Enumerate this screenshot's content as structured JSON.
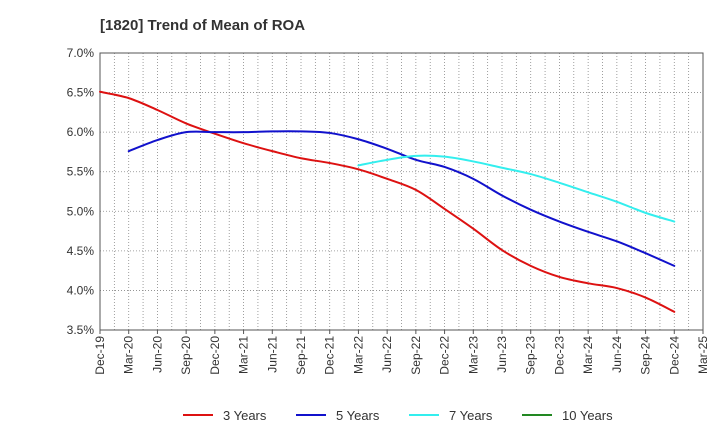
{
  "chart_data": {
    "type": "line",
    "title": "[1820]  Trend of Mean of ROA",
    "xlabel": "",
    "ylabel": "",
    "ylim": [
      3.5,
      7.0
    ],
    "y_ticks": [
      "3.5%",
      "4.0%",
      "4.5%",
      "5.0%",
      "5.5%",
      "6.0%",
      "6.5%",
      "7.0%"
    ],
    "x_ticks": [
      "Dec-19",
      "Mar-20",
      "Jun-20",
      "Sep-20",
      "Dec-20",
      "Mar-21",
      "Jun-21",
      "Sep-21",
      "Dec-21",
      "Mar-22",
      "Jun-22",
      "Sep-22",
      "Dec-22",
      "Mar-23",
      "Jun-23",
      "Sep-23",
      "Dec-23",
      "Mar-24",
      "Jun-24",
      "Sep-24",
      "Dec-24",
      "Mar-25"
    ],
    "grid": true,
    "legend_position": "bottom",
    "series": [
      {
        "name": "3 Years",
        "color": "#dd1111",
        "values": [
          6.51,
          6.43,
          6.28,
          6.11,
          5.98,
          5.86,
          5.76,
          5.67,
          5.61,
          5.53,
          5.41,
          5.27,
          5.03,
          4.78,
          4.51,
          4.31,
          4.17,
          4.09,
          4.03,
          3.91,
          3.73,
          null
        ]
      },
      {
        "name": "5 Years",
        "color": "#1111cc",
        "values": [
          null,
          5.76,
          5.9,
          6.0,
          6.0,
          6.0,
          6.01,
          6.01,
          5.99,
          5.91,
          5.79,
          5.65,
          5.56,
          5.41,
          5.2,
          5.02,
          4.87,
          4.74,
          4.62,
          4.47,
          4.31,
          null
        ]
      },
      {
        "name": "7 Years",
        "color": "#33eeee",
        "values": [
          null,
          null,
          null,
          null,
          null,
          null,
          null,
          null,
          null,
          5.58,
          5.65,
          5.7,
          5.69,
          5.63,
          5.55,
          5.47,
          5.36,
          5.24,
          5.12,
          4.98,
          4.87,
          null
        ]
      },
      {
        "name": "10 Years",
        "color": "#228822",
        "values": [
          null,
          null,
          null,
          null,
          null,
          null,
          null,
          null,
          null,
          null,
          null,
          null,
          null,
          null,
          null,
          null,
          null,
          null,
          null,
          null,
          null,
          null
        ]
      }
    ]
  }
}
